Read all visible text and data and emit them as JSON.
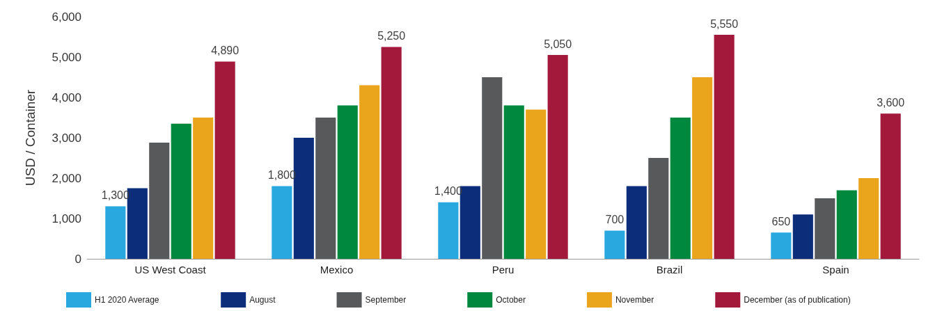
{
  "chart_data": {
    "type": "bar",
    "ylabel": "USD / Container",
    "categories": [
      "US West Coast",
      "Mexico",
      "Peru",
      "Brazil",
      "Spain"
    ],
    "ylim": [
      0,
      6000
    ],
    "yticks": [
      {
        "value": 0,
        "label": "0"
      },
      {
        "value": 1000,
        "label": "1,000"
      },
      {
        "value": 2000,
        "label": "2,000"
      },
      {
        "value": 3000,
        "label": "3,000"
      },
      {
        "value": 4000,
        "label": "4,000"
      },
      {
        "value": 5000,
        "label": "5,000"
      },
      {
        "value": 6000,
        "label": "6,000"
      }
    ],
    "grid": false,
    "legend": "bottom",
    "series": [
      {
        "name": "H1 2020 Average",
        "color": "#29a8e0",
        "values": [
          1300,
          1800,
          1400,
          700,
          650
        ],
        "value_labels": [
          "1,300",
          "1,800",
          "1,400",
          "700",
          "650"
        ]
      },
      {
        "name": "August",
        "color": "#0b2d7a",
        "values": [
          1750,
          3000,
          1800,
          1800,
          1100
        ]
      },
      {
        "name": "September",
        "color": "#58595b",
        "values": [
          2880,
          3500,
          4500,
          2500,
          1500
        ]
      },
      {
        "name": "October",
        "color": "#00883f",
        "values": [
          3350,
          3800,
          3800,
          3500,
          1700
        ]
      },
      {
        "name": "November",
        "color": "#eaa51c",
        "values": [
          3500,
          4300,
          3700,
          4500,
          2000
        ]
      },
      {
        "name": "December (as of publication)",
        "color": "#a3193b",
        "values": [
          4890,
          5250,
          5050,
          5550,
          3600
        ],
        "value_labels": [
          "4,890",
          "5,250",
          "5,050",
          "5,550",
          "3,600"
        ]
      }
    ]
  }
}
